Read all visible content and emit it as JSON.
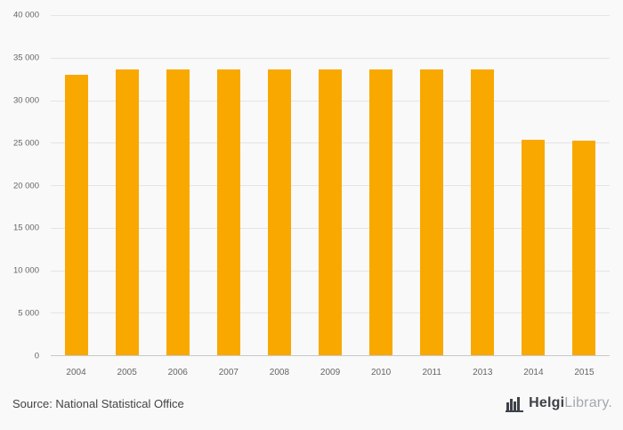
{
  "chart_data": {
    "type": "bar",
    "categories": [
      "2004",
      "2005",
      "2006",
      "2007",
      "2008",
      "2009",
      "2010",
      "2011",
      "2013",
      "2014",
      "2015"
    ],
    "values": [
      33000,
      33600,
      33600,
      33600,
      33600,
      33600,
      33600,
      33600,
      33600,
      25300,
      25200
    ],
    "title": "",
    "xlabel": "",
    "ylabel": "",
    "ylim": [
      0,
      40000
    ],
    "ytick_step": 5000,
    "grid": true,
    "legend": false,
    "bar_color": "#F9A800",
    "background_color": "#f9f9f9",
    "gridline_color": "#e4e4e4"
  },
  "footer": {
    "source": "Source: National Statistical Office",
    "logo": {
      "bold": "Helgi",
      "light": "Library."
    }
  }
}
